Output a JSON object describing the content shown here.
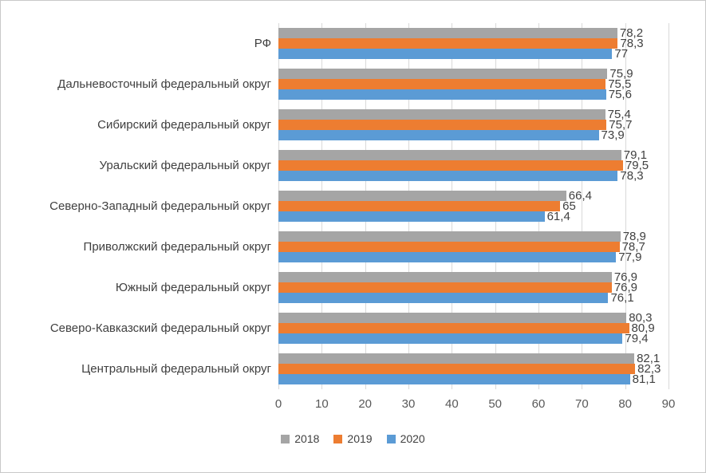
{
  "chart_data": {
    "type": "bar",
    "orientation": "horizontal",
    "title": "",
    "categories": [
      "РФ",
      "Дальневосточный федеральный округ",
      "Сибирский федеральный округ",
      "Уральский федеральный округ",
      "Северно-Западный федеральный округ",
      "Приволжский федеральный округ",
      "Южный федеральный округ",
      "Северо-Кавказский федеральный округ",
      "Центральный федеральный округ"
    ],
    "series": [
      {
        "name": "2018",
        "color": "#a5a5a5",
        "values": [
          78.2,
          75.9,
          75.4,
          79.1,
          66.4,
          78.9,
          76.9,
          80.3,
          82.1
        ],
        "labels": [
          "78,2",
          "75,9",
          "75,4",
          "79,1",
          "66,4",
          "78,9",
          "76,9",
          "80,3",
          "82,1"
        ]
      },
      {
        "name": "2019",
        "color": "#ed7d31",
        "values": [
          78.3,
          75.5,
          75.7,
          79.5,
          65,
          78.7,
          76.9,
          80.9,
          82.3
        ],
        "labels": [
          "78,3",
          "75,5",
          "75,7",
          "79,5",
          "65",
          "78,7",
          "76,9",
          "80,9",
          "82,3"
        ]
      },
      {
        "name": "2020",
        "color": "#5b9bd5",
        "values": [
          77,
          75.6,
          73.9,
          78.3,
          61.4,
          77.9,
          76.1,
          79.4,
          81.1
        ],
        "labels": [
          "77",
          "75,6",
          "73,9",
          "78,3",
          "61,4",
          "77,9",
          "76,1",
          "79,4",
          "81,1"
        ]
      }
    ],
    "x_ticks": [
      "0",
      "10",
      "20",
      "30",
      "40",
      "50",
      "60",
      "70",
      "80",
      "90"
    ],
    "xlim": [
      0,
      90
    ],
    "grid": true,
    "legend_position": "bottom",
    "gridline_color": "#d9d9d9",
    "label_color": "#404040",
    "tick_color": "#595959"
  }
}
